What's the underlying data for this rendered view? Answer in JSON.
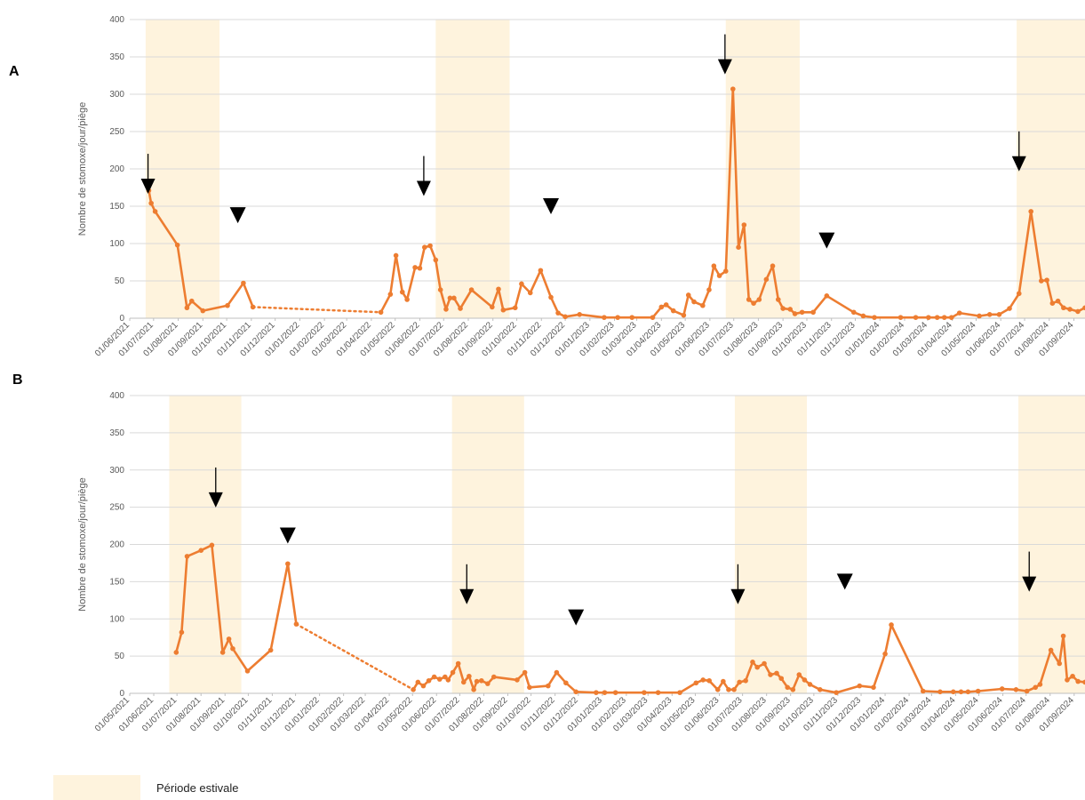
{
  "colors": {
    "series": "#ED7D31",
    "summer": "#FEF3DD",
    "grid": "#D9D9D9",
    "axis": "#BFBFBF",
    "tick": "#595959",
    "marker": "#000000"
  },
  "legend": {
    "label": "Période estivale"
  },
  "chart_data": [
    {
      "type": "line",
      "panel": "A",
      "ylabel": "Nombre de stomoxe/jour/piège",
      "ylim": [
        0,
        400
      ],
      "yticks": [
        0,
        50,
        100,
        150,
        200,
        250,
        300,
        350,
        400
      ],
      "xlim": [
        "2021-06-01",
        "2024-09-15"
      ],
      "xtick_labels": [
        "01/06/2021",
        "01/07/2021",
        "01/08/2021",
        "01/09/2021",
        "01/10/2021",
        "01/11/2021",
        "01/12/2021",
        "01/01/2022",
        "01/02/2022",
        "01/03/2022",
        "01/04/2022",
        "01/05/2022",
        "01/06/2022",
        "01/07/2022",
        "01/08/2022",
        "01/09/2022",
        "01/10/2022",
        "01/11/2022",
        "01/12/2022",
        "01/01/2023",
        "01/02/2023",
        "01/03/2023",
        "01/04/2023",
        "01/05/2023",
        "01/06/2023",
        "01/07/2023",
        "01/08/2023",
        "01/09/2023",
        "01/10/2023",
        "01/11/2023",
        "01/12/2023",
        "01/01/2024",
        "01/02/2024",
        "01/03/2024",
        "01/04/2024",
        "01/05/2024",
        "01/06/2024",
        "01/07/2024",
        "01/08/2024",
        "01/09/2024"
      ],
      "summer_periods": [
        [
          "2021-06-21",
          "2021-09-22"
        ],
        [
          "2022-06-21",
          "2022-09-22"
        ],
        [
          "2023-06-21",
          "2023-09-22"
        ],
        [
          "2024-06-21",
          "2024-09-15"
        ]
      ],
      "series": [
        {
          "segments": [
            {
              "style": "solid",
              "x": [
                "2021-06-25",
                "2021-06-28",
                "2021-07-03",
                "2021-07-31",
                "2021-08-12",
                "2021-08-18",
                "2021-09-01",
                "2021-10-02",
                "2021-10-22",
                "2021-11-03"
              ],
              "y": [
                171,
                154,
                143,
                98,
                14,
                23,
                10,
                17,
                47,
                15
              ]
            },
            {
              "style": "dotted",
              "x": [
                "2021-11-03",
                "2022-04-13"
              ],
              "y": [
                15,
                8
              ]
            },
            {
              "style": "solid",
              "x": [
                "2022-04-13",
                "2022-04-25",
                "2022-05-02",
                "2022-05-10",
                "2022-05-16",
                "2022-05-26",
                "2022-06-01",
                "2022-06-07",
                "2022-06-14",
                "2022-06-21",
                "2022-06-27",
                "2022-07-04",
                "2022-07-09",
                "2022-07-14",
                "2022-07-22",
                "2022-08-05",
                "2022-08-31",
                "2022-09-08",
                "2022-09-14",
                "2022-09-29",
                "2022-10-07",
                "2022-10-18",
                "2022-10-31",
                "2022-11-13",
                "2022-11-22",
                "2022-12-01",
                "2022-12-19",
                "2023-01-19",
                "2023-02-05",
                "2023-02-23",
                "2023-03-21",
                "2023-04-01",
                "2023-04-07",
                "2023-04-16",
                "2023-04-29",
                "2023-05-05",
                "2023-05-12",
                "2023-05-23",
                "2023-05-31",
                "2023-06-06",
                "2023-06-13",
                "2023-06-21",
                "2023-06-30",
                "2023-07-07",
                "2023-07-14",
                "2023-07-20",
                "2023-07-26",
                "2023-08-02",
                "2023-08-11",
                "2023-08-19",
                "2023-08-26",
                "2023-09-01",
                "2023-09-10",
                "2023-09-16",
                "2023-09-25",
                "2023-10-09",
                "2023-10-26",
                "2023-11-29",
                "2023-12-11",
                "2023-12-25",
                "2024-01-27",
                "2024-02-15",
                "2024-03-02",
                "2024-03-13",
                "2024-03-22",
                "2024-03-31",
                "2024-04-10",
                "2024-05-05",
                "2024-05-18",
                "2024-05-30",
                "2024-06-12",
                "2024-06-24",
                "2024-07-09",
                "2024-07-22",
                "2024-07-29",
                "2024-08-05",
                "2024-08-12",
                "2024-08-19",
                "2024-08-27",
                "2024-09-06",
                "2024-09-15"
              ],
              "y": [
                8,
                32,
                84,
                35,
                25,
                68,
                67,
                95,
                97,
                78,
                38,
                12,
                27,
                27,
                13,
                38,
                15,
                39,
                11,
                14,
                46,
                34,
                64,
                28,
                7,
                2,
                5,
                1,
                1,
                1,
                1,
                15,
                18,
                10,
                4,
                31,
                22,
                17,
                38,
                70,
                57,
                63,
                307,
                95,
                125,
                25,
                20,
                25,
                52,
                70,
                25,
                13,
                12,
                6,
                8,
                8,
                30,
                8,
                3,
                1,
                1,
                1,
                1,
                1,
                1,
                1,
                7,
                3,
                5,
                5,
                13,
                33,
                143,
                50,
                51,
                20,
                23,
                14,
                12,
                9,
                14
              ]
            }
          ]
        }
      ],
      "markers": [
        {
          "kind": "arrow",
          "x": "2021-06-24",
          "y": 175
        },
        {
          "kind": "arrow",
          "x": "2022-06-06",
          "y": 172
        },
        {
          "kind": "arrow",
          "x": "2023-06-20",
          "y": 335
        },
        {
          "kind": "arrow",
          "x": "2024-06-24",
          "y": 205
        },
        {
          "kind": "triangle",
          "x": "2021-10-15",
          "y": 138
        },
        {
          "kind": "triangle",
          "x": "2022-11-13",
          "y": 150
        },
        {
          "kind": "triangle",
          "x": "2023-10-26",
          "y": 104
        }
      ]
    },
    {
      "type": "line",
      "panel": "B",
      "ylabel": "Nombre de stomoxe/jour/piège",
      "ylim": [
        0,
        400
      ],
      "yticks": [
        0,
        50,
        100,
        150,
        200,
        250,
        300,
        350,
        400
      ],
      "xlim": [
        "2021-05-01",
        "2024-09-15"
      ],
      "xtick_labels": [
        "01/05/2021",
        "01/06/2021",
        "01/07/2021",
        "01/08/2021",
        "01/09/2021",
        "01/10/2021",
        "01/11/2021",
        "01/12/2021",
        "01/01/2022",
        "01/02/2022",
        "01/03/2022",
        "01/04/2022",
        "01/05/2022",
        "01/06/2022",
        "01/07/2022",
        "01/08/2022",
        "01/09/2022",
        "01/10/2022",
        "01/11/2022",
        "01/12/2022",
        "01/01/2023",
        "01/02/2023",
        "01/03/2023",
        "01/04/2023",
        "01/05/2023",
        "01/06/2023",
        "01/07/2023",
        "01/08/2023",
        "01/09/2023",
        "01/10/2023",
        "01/11/2023",
        "01/12/2023",
        "01/01/2024",
        "01/02/2024",
        "01/03/2024",
        "01/04/2024",
        "01/05/2024",
        "01/06/2024",
        "01/07/2024",
        "01/08/2024",
        "01/09/2024"
      ],
      "summer_periods": [
        [
          "2021-06-21",
          "2021-09-22"
        ],
        [
          "2022-06-21",
          "2022-09-22"
        ],
        [
          "2023-06-21",
          "2023-09-22"
        ],
        [
          "2024-06-21",
          "2024-09-15"
        ]
      ],
      "series": [
        {
          "segments": [
            {
              "style": "solid",
              "x": [
                "2021-06-30",
                "2021-07-07",
                "2021-07-14",
                "2021-08-01",
                "2021-08-15",
                "2021-08-29",
                "2021-09-06",
                "2021-09-11",
                "2021-09-30",
                "2021-10-30",
                "2021-11-21",
                "2021-12-02"
              ],
              "y": [
                55,
                82,
                184,
                192,
                199,
                55,
                73,
                60,
                30,
                58,
                174,
                93
              ]
            },
            {
              "style": "dotted",
              "x": [
                "2021-12-02",
                "2022-05-02"
              ],
              "y": [
                93,
                5
              ]
            },
            {
              "style": "solid",
              "x": [
                "2022-05-02",
                "2022-05-08",
                "2022-05-15",
                "2022-05-22",
                "2022-05-29",
                "2022-06-05",
                "2022-06-12",
                "2022-06-16",
                "2022-06-22",
                "2022-06-29",
                "2022-07-06",
                "2022-07-13",
                "2022-07-19",
                "2022-07-23",
                "2022-07-29",
                "2022-08-06",
                "2022-08-14",
                "2022-09-13",
                "2022-09-23",
                "2022-09-29",
                "2022-10-23",
                "2022-11-03",
                "2022-11-15",
                "2022-11-28",
                "2022-12-24",
                "2023-01-04",
                "2023-01-18",
                "2023-02-24",
                "2023-03-14",
                "2023-04-11",
                "2023-05-02",
                "2023-05-11",
                "2023-05-19",
                "2023-05-30",
                "2023-06-06",
                "2023-06-13",
                "2023-06-20",
                "2023-06-27",
                "2023-07-05",
                "2023-07-14",
                "2023-07-20",
                "2023-07-29",
                "2023-08-06",
                "2023-08-14",
                "2023-08-20",
                "2023-08-28",
                "2023-09-04",
                "2023-09-12",
                "2023-09-19",
                "2023-09-26",
                "2023-10-09",
                "2023-10-30",
                "2023-11-29",
                "2023-12-17",
                "2024-01-01",
                "2024-01-09",
                "2024-02-19",
                "2024-03-12",
                "2024-03-29",
                "2024-04-08",
                "2024-04-17",
                "2024-04-30",
                "2024-05-31",
                "2024-06-18",
                "2024-07-02",
                "2024-07-13",
                "2024-07-19",
                "2024-08-02",
                "2024-08-13",
                "2024-08-18",
                "2024-08-23",
                "2024-08-30",
                "2024-09-06",
                "2024-09-15"
              ],
              "y": [
                5,
                15,
                10,
                17,
                22,
                19,
                22,
                18,
                28,
                40,
                15,
                23,
                5,
                16,
                17,
                13,
                22,
                18,
                28,
                8,
                10,
                28,
                14,
                2,
                1,
                1,
                1,
                1,
                1,
                1,
                14,
                18,
                17,
                5,
                16,
                5,
                5,
                15,
                17,
                42,
                35,
                40,
                25,
                27,
                20,
                8,
                5,
                25,
                18,
                12,
                5,
                1,
                10,
                8,
                53,
                92,
                3,
                2,
                2,
                2,
                2,
                3,
                6,
                5,
                3,
                8,
                12,
                58,
                40,
                77,
                18,
                23,
                16,
                15
              ]
            }
          ]
        }
      ],
      "markers": [
        {
          "kind": "arrow",
          "x": "2021-08-20",
          "y": 258
        },
        {
          "kind": "triangle",
          "x": "2021-11-21",
          "y": 212
        },
        {
          "kind": "arrow",
          "x": "2022-07-10",
          "y": 128
        },
        {
          "kind": "triangle",
          "x": "2022-11-28",
          "y": 102
        },
        {
          "kind": "arrow",
          "x": "2023-06-25",
          "y": 128
        },
        {
          "kind": "triangle",
          "x": "2023-11-10",
          "y": 150
        },
        {
          "kind": "arrow",
          "x": "2024-07-05",
          "y": 145
        }
      ]
    }
  ]
}
